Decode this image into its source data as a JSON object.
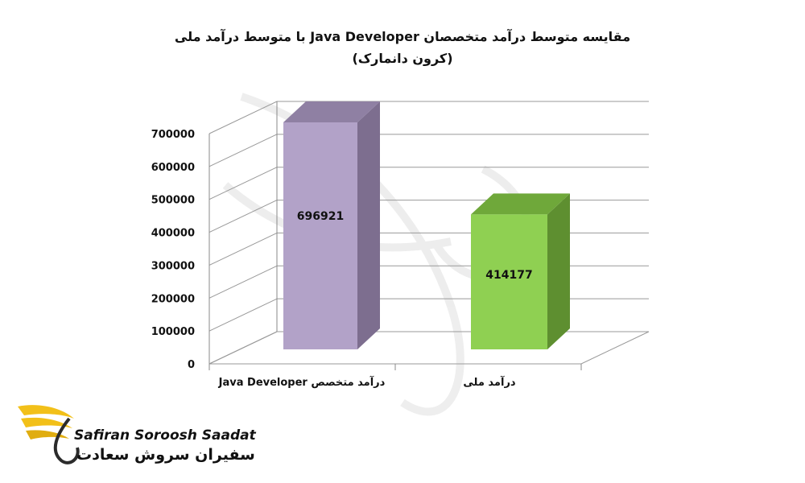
{
  "chart_data": {
    "type": "bar",
    "title": "مقایسه متوسط درآمد متخصصان Java Developer با متوسط درآمد ملی",
    "subtitle": "(کرون دانمارک)",
    "categories": [
      "درآمد متخصص Java Developer",
      "درآمد ملی"
    ],
    "values": [
      696921,
      414177
    ],
    "data_labels": [
      "696921",
      "414177"
    ],
    "ylim": [
      0,
      700000
    ],
    "yticks": [
      0,
      100000,
      200000,
      300000,
      400000,
      500000,
      600000,
      700000
    ],
    "ytick_labels": [
      "0",
      "100000",
      "200000",
      "300000",
      "400000",
      "500000",
      "600000",
      "700000"
    ],
    "grid": true,
    "style": "3d-column",
    "colors": {
      "bar1_front": "#b2a2c8",
      "bar1_side": "#7d6e8f",
      "bar1_top": "#8f80a3",
      "bar2_front": "#8fd052",
      "bar2_side": "#5e8f30",
      "bar2_top": "#6fa83a",
      "grid": "#999999",
      "axis": "#888888"
    }
  },
  "logo": {
    "latin": "Safiran Soroosh Saadat",
    "persian": "سفیران سروش سعادت",
    "colors": {
      "wing": "#f2c019",
      "wing_dark": "#2b2b2b"
    }
  }
}
